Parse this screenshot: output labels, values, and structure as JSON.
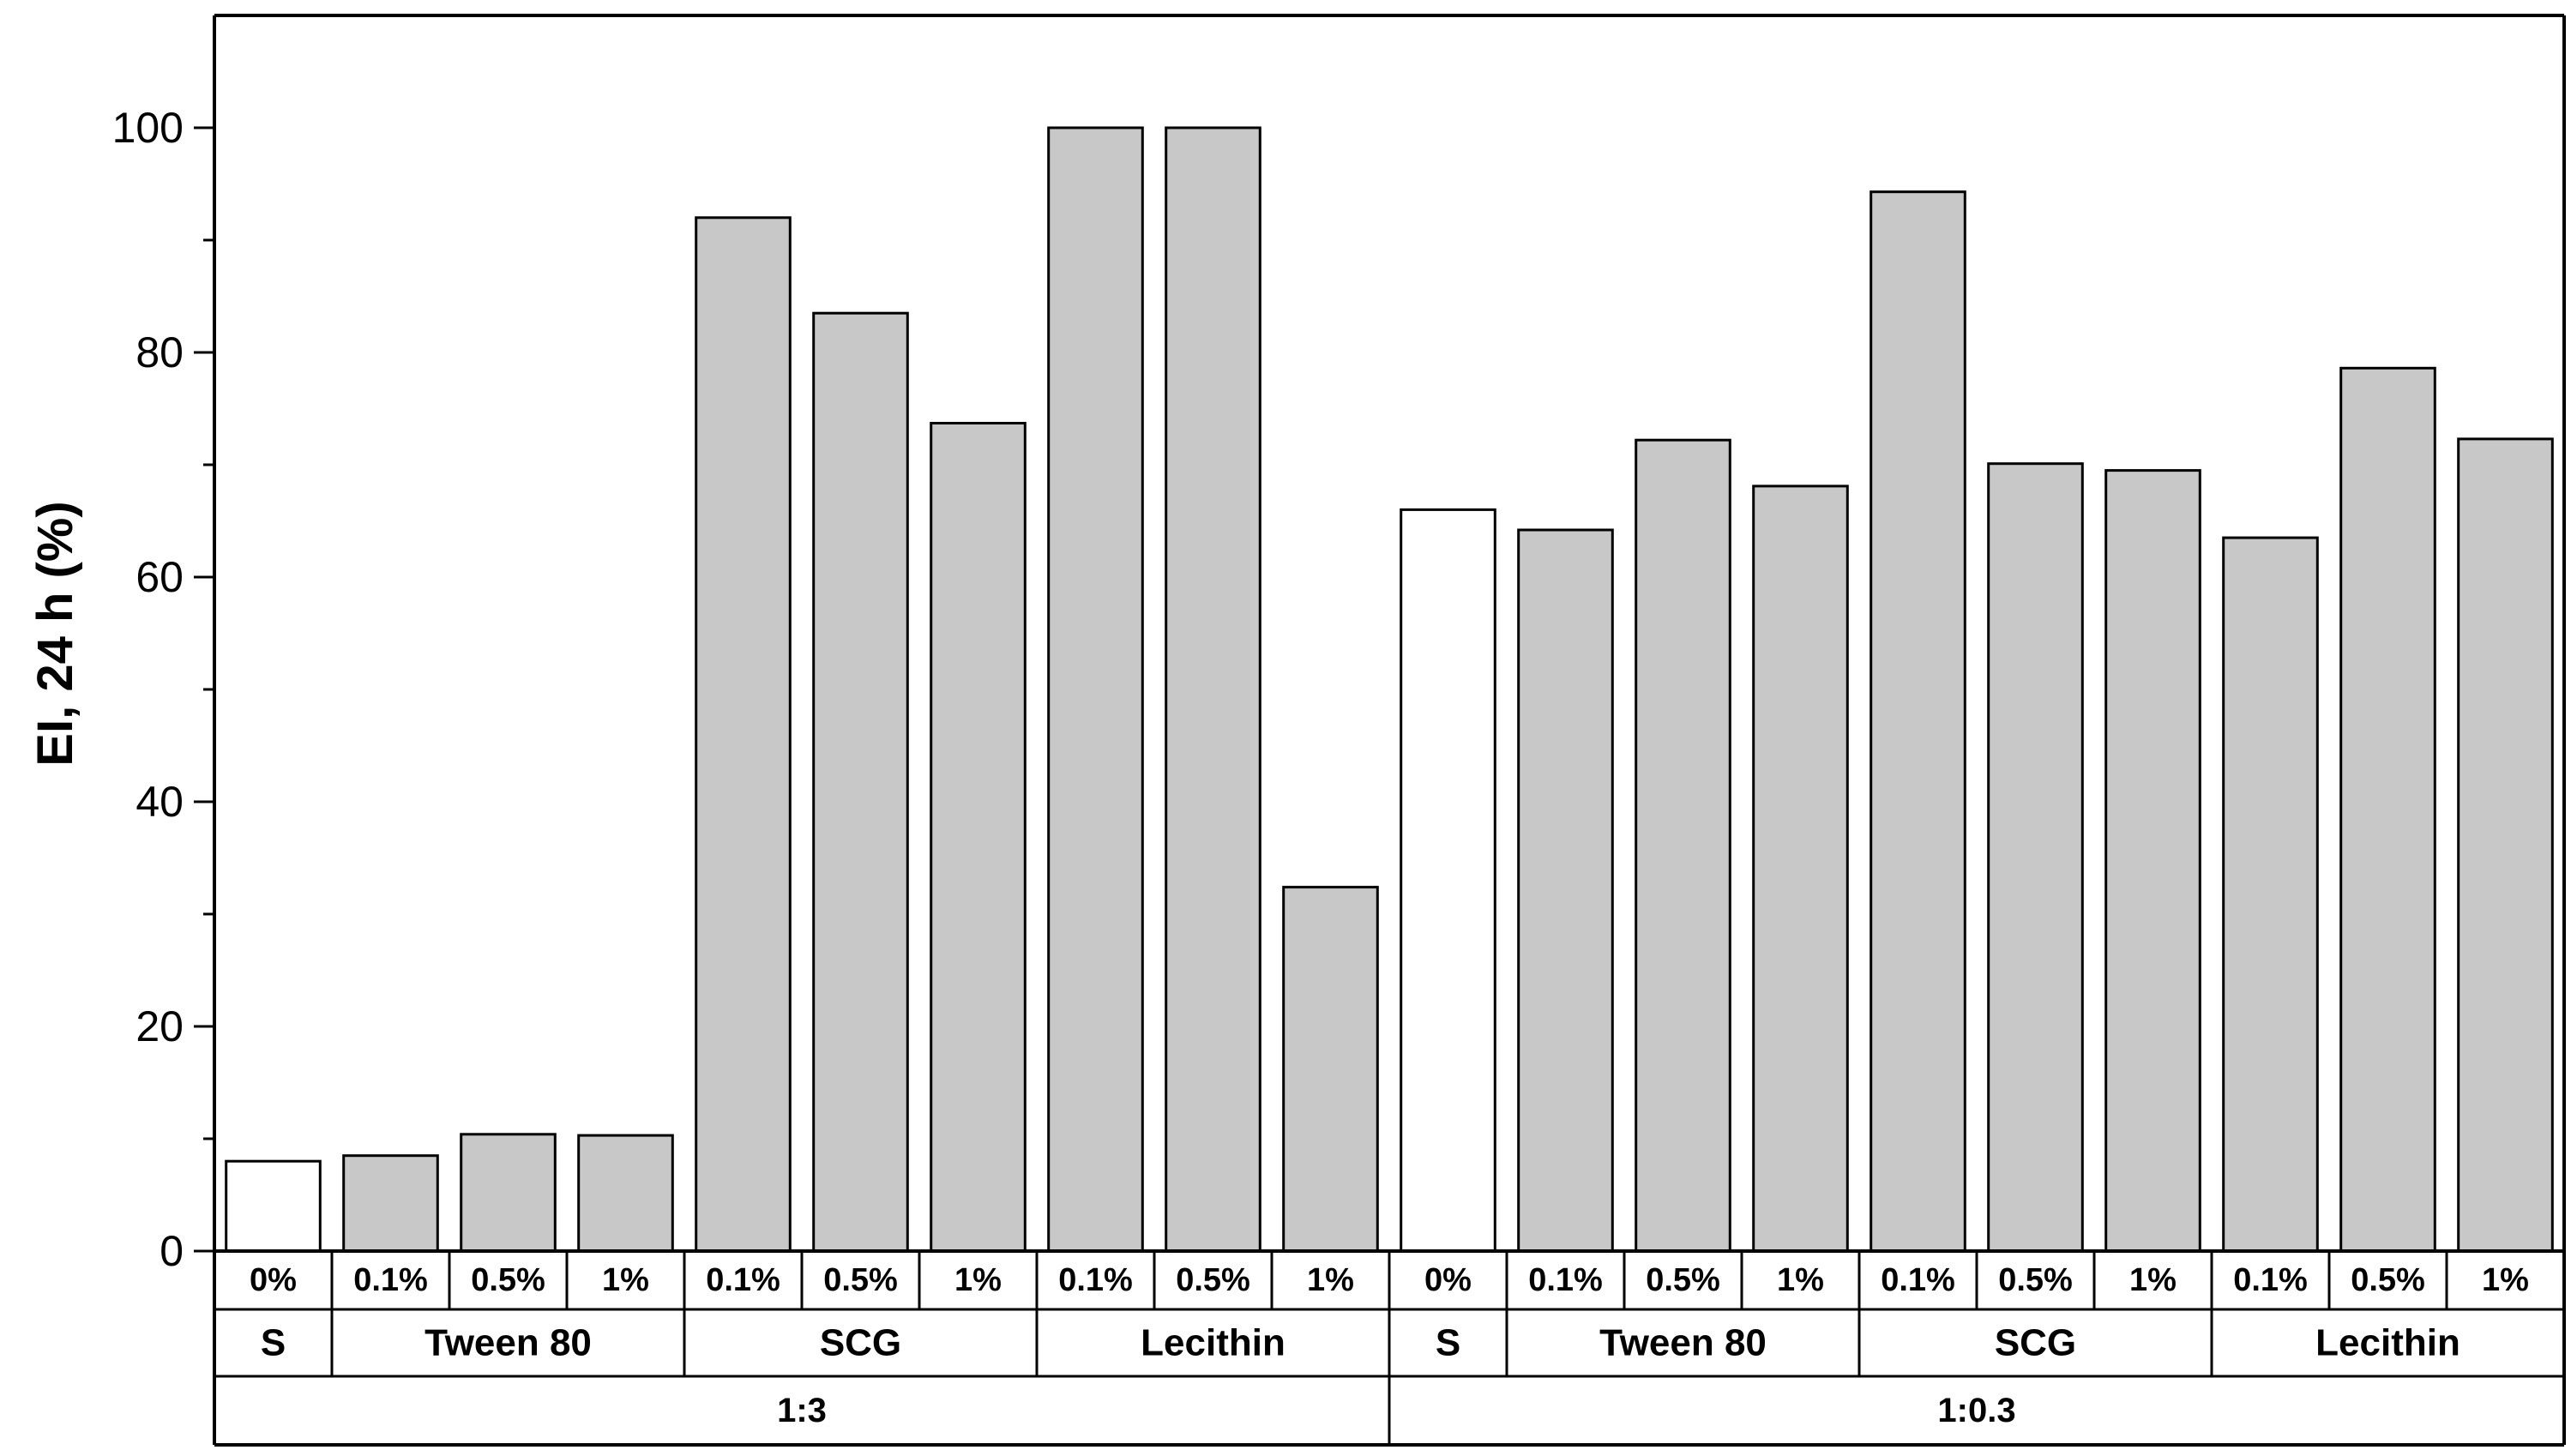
{
  "chart_data": {
    "type": "bar",
    "title": "",
    "xlabel": "",
    "ylabel": "EI, 24 h (%)",
    "ylim": [
      0,
      110
    ],
    "yticks": [
      0,
      20,
      40,
      60,
      80,
      100
    ],
    "grid": false,
    "colors": {
      "control": "#ffffff",
      "treated": "#c8c8c8",
      "stroke": "#000000"
    },
    "bars": [
      {
        "ratio": "1:3",
        "group": "S",
        "conc": "0%",
        "value": 8,
        "control": true
      },
      {
        "ratio": "1:3",
        "group": "Tween 80",
        "conc": "0.1%",
        "value": 8.5
      },
      {
        "ratio": "1:3",
        "group": "Tween 80",
        "conc": "0.5%",
        "value": 10.4
      },
      {
        "ratio": "1:3",
        "group": "Tween 80",
        "conc": "1%",
        "value": 10.3
      },
      {
        "ratio": "1:3",
        "group": "SCG",
        "conc": "0.1%",
        "value": 92
      },
      {
        "ratio": "1:3",
        "group": "SCG",
        "conc": "0.5%",
        "value": 83.5
      },
      {
        "ratio": "1:3",
        "group": "SCG",
        "conc": "1%",
        "value": 73.7
      },
      {
        "ratio": "1:3",
        "group": "Lecithin",
        "conc": "0.1%",
        "value": 100
      },
      {
        "ratio": "1:3",
        "group": "Lecithin",
        "conc": "0.5%",
        "value": 100
      },
      {
        "ratio": "1:3",
        "group": "Lecithin",
        "conc": "1%",
        "value": 32.4
      },
      {
        "ratio": "1:0.3",
        "group": "S",
        "conc": "0%",
        "value": 66,
        "control": true
      },
      {
        "ratio": "1:0.3",
        "group": "Tween 80",
        "conc": "0.1%",
        "value": 64.2
      },
      {
        "ratio": "1:0.3",
        "group": "Tween 80",
        "conc": "0.5%",
        "value": 72.2
      },
      {
        "ratio": "1:0.3",
        "group": "Tween 80",
        "conc": "1%",
        "value": 68.1
      },
      {
        "ratio": "1:0.3",
        "group": "SCG",
        "conc": "0.1%",
        "value": 94.3
      },
      {
        "ratio": "1:0.3",
        "group": "SCG",
        "conc": "0.5%",
        "value": 70.1
      },
      {
        "ratio": "1:0.3",
        "group": "SCG",
        "conc": "1%",
        "value": 69.5
      },
      {
        "ratio": "1:0.3",
        "group": "Lecithin",
        "conc": "0.1%",
        "value": 63.5
      },
      {
        "ratio": "1:0.3",
        "group": "Lecithin",
        "conc": "0.5%",
        "value": 78.6
      },
      {
        "ratio": "1:0.3",
        "group": "Lecithin",
        "conc": "1%",
        "value": 72.3
      }
    ],
    "groups": [
      {
        "label": "S",
        "start": 0,
        "count": 1
      },
      {
        "label": "Tween 80",
        "start": 1,
        "count": 3
      },
      {
        "label": "SCG",
        "start": 4,
        "count": 3
      },
      {
        "label": "Lecithin",
        "start": 7,
        "count": 3
      },
      {
        "label": "S",
        "start": 10,
        "count": 1
      },
      {
        "label": "Tween 80",
        "start": 11,
        "count": 3
      },
      {
        "label": "SCG",
        "start": 14,
        "count": 3
      },
      {
        "label": "Lecithin",
        "start": 17,
        "count": 3
      }
    ],
    "ratios": [
      {
        "label": "1:3",
        "start": 0,
        "count": 10
      },
      {
        "label": "1:0.3",
        "start": 10,
        "count": 10
      }
    ]
  }
}
